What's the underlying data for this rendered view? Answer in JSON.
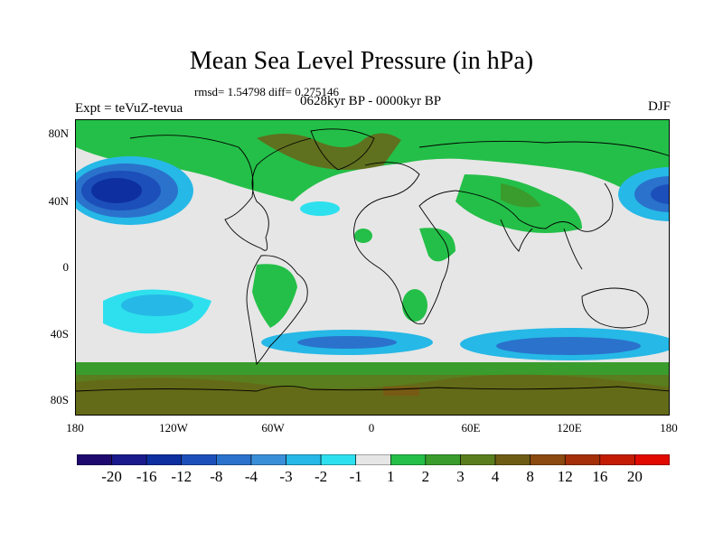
{
  "title": "Mean Sea Level Pressure (in hPa)",
  "stats": "rmsd= 1.54798 diff= 0.275146",
  "experiment": "Expt = teVuZ-tevua",
  "period": "0628kyr BP - 0000kyr BP",
  "season": "DJF",
  "y_axis": [
    "80N",
    "40N",
    "0",
    "40S",
    "80S"
  ],
  "x_axis": [
    "180",
    "120W",
    "60W",
    "0",
    "60E",
    "120E",
    "180"
  ],
  "legend": {
    "labels": [
      "-20",
      "-16",
      "-12",
      "-8",
      "-4",
      "-3",
      "-2",
      "-1",
      "1",
      "2",
      "3",
      "4",
      "8",
      "12",
      "16",
      "20"
    ],
    "colors": [
      "#1e0a6e",
      "#1a1a8c",
      "#0d2fa0",
      "#1c4fba",
      "#2a72cc",
      "#3a8fd8",
      "#26b8e6",
      "#2ee0ee",
      "#e6e6e6",
      "#24bf48",
      "#3a9c2c",
      "#5a7d1e",
      "#6e5c14",
      "#8a4a10",
      "#a33008",
      "#c21c04",
      "#e00a00"
    ]
  }
}
